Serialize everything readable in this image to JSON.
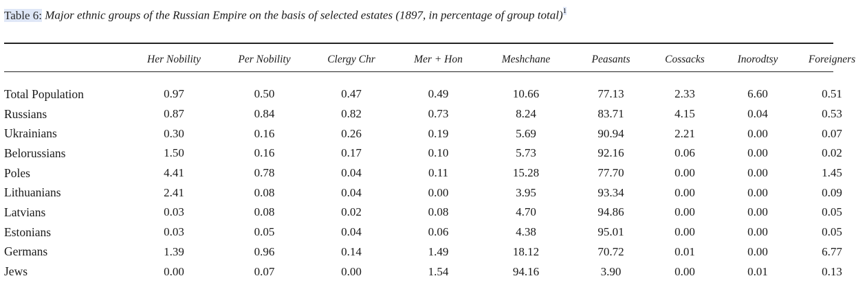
{
  "caption": {
    "label": "Table 6:",
    "title": "Major ethnic groups of the Russian Empire on the basis of selected estates (1897, in percentage of group total)",
    "footnote_mark": "1"
  },
  "table": {
    "columns": [
      "",
      "Her Nobility",
      "Per Nobility",
      "Clergy Chr",
      "Mer + Hon",
      "Meshchane",
      "Peasants",
      "Cossacks",
      "Inorodtsy",
      "Foreigners"
    ],
    "rows": [
      {
        "label": "Total Population",
        "values": [
          "0.97",
          "0.50",
          "0.47",
          "0.49",
          "10.66",
          "77.13",
          "2.33",
          "6.60",
          "0.51"
        ]
      },
      {
        "label": "Russians",
        "values": [
          "0.87",
          "0.84",
          "0.82",
          "0.73",
          "8.24",
          "83.71",
          "4.15",
          "0.04",
          "0.53"
        ]
      },
      {
        "label": "Ukrainians",
        "values": [
          "0.30",
          "0.16",
          "0.26",
          "0.19",
          "5.69",
          "90.94",
          "2.21",
          "0.00",
          "0.07"
        ]
      },
      {
        "label": "Belorussians",
        "values": [
          "1.50",
          "0.16",
          "0.17",
          "0.10",
          "5.73",
          "92.16",
          "0.06",
          "0.00",
          "0.02"
        ]
      },
      {
        "label": "Poles",
        "values": [
          "4.41",
          "0.78",
          "0.04",
          "0.11",
          "15.28",
          "77.70",
          "0.00",
          "0.00",
          "1.45"
        ]
      },
      {
        "label": "Lithuanians",
        "values": [
          "2.41",
          "0.08",
          "0.04",
          "0.00",
          "3.95",
          "93.34",
          "0.00",
          "0.00",
          "0.09"
        ]
      },
      {
        "label": "Latvians",
        "values": [
          "0.03",
          "0.08",
          "0.02",
          "0.08",
          "4.70",
          "94.86",
          "0.00",
          "0.00",
          "0.05"
        ]
      },
      {
        "label": "Estonians",
        "values": [
          "0.03",
          "0.05",
          "0.04",
          "0.06",
          "4.38",
          "95.01",
          "0.00",
          "0.00",
          "0.05"
        ]
      },
      {
        "label": "Germans",
        "values": [
          "1.39",
          "0.96",
          "0.14",
          "1.49",
          "18.12",
          "70.72",
          "0.01",
          "0.00",
          "6.77"
        ]
      },
      {
        "label": "Jews",
        "values": [
          "0.00",
          "0.07",
          "0.00",
          "1.54",
          "94.16",
          "3.90",
          "0.00",
          "0.01",
          "0.13"
        ]
      }
    ]
  }
}
